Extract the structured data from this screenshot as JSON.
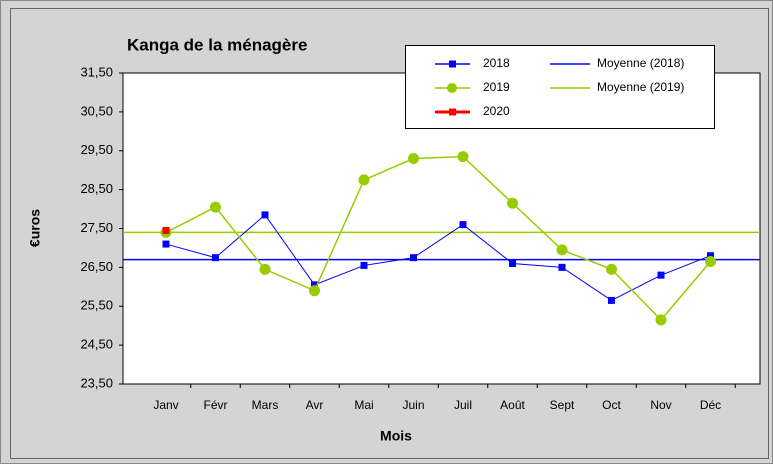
{
  "chart_data": {
    "type": "line",
    "title": "Kanga de la ménagère",
    "x_label": "Mois",
    "y_label": "€uros",
    "categories": [
      "Janv",
      "Févr",
      "Mars",
      "Avr",
      "Mai",
      "Juin",
      "Juil",
      "Août",
      "Sept",
      "Oct",
      "Nov",
      "Déc"
    ],
    "series": [
      {
        "name": "2018",
        "color": "#0000ff",
        "marker": "square",
        "values": [
          27.1,
          26.75,
          27.85,
          26.05,
          26.55,
          26.75,
          27.6,
          26.6,
          26.5,
          25.65,
          26.3,
          26.8
        ]
      },
      {
        "name": "2019",
        "color": "#99cc00",
        "marker": "circle",
        "values": [
          27.4,
          28.05,
          26.45,
          25.9,
          28.75,
          29.3,
          29.35,
          28.15,
          26.95,
          26.45,
          25.15,
          26.65
        ]
      },
      {
        "name": "2020",
        "color": "#ff0000",
        "marker": "square",
        "values": [
          27.45,
          null,
          null,
          null,
          null,
          null,
          null,
          null,
          null,
          null,
          null,
          null
        ]
      }
    ],
    "means": [
      {
        "name": "Moyenne (2018)",
        "color": "#0000ff",
        "value": 26.7
      },
      {
        "name": "Moyenne (2019)",
        "color": "#99cc00",
        "value": 27.4
      }
    ],
    "ylim": [
      23.5,
      31.5
    ],
    "yticks": [
      {
        "value": 23.5,
        "label": "23,50"
      },
      {
        "value": 24.5,
        "label": "24,50"
      },
      {
        "value": 25.5,
        "label": "25,50"
      },
      {
        "value": 26.5,
        "label": "26,50"
      },
      {
        "value": 27.5,
        "label": "27,50"
      },
      {
        "value": 28.5,
        "label": "28,50"
      },
      {
        "value": 29.5,
        "label": "29,50"
      },
      {
        "value": 30.5,
        "label": "30,50"
      },
      {
        "value": 31.5,
        "label": "31,50"
      }
    ],
    "grid": false
  }
}
